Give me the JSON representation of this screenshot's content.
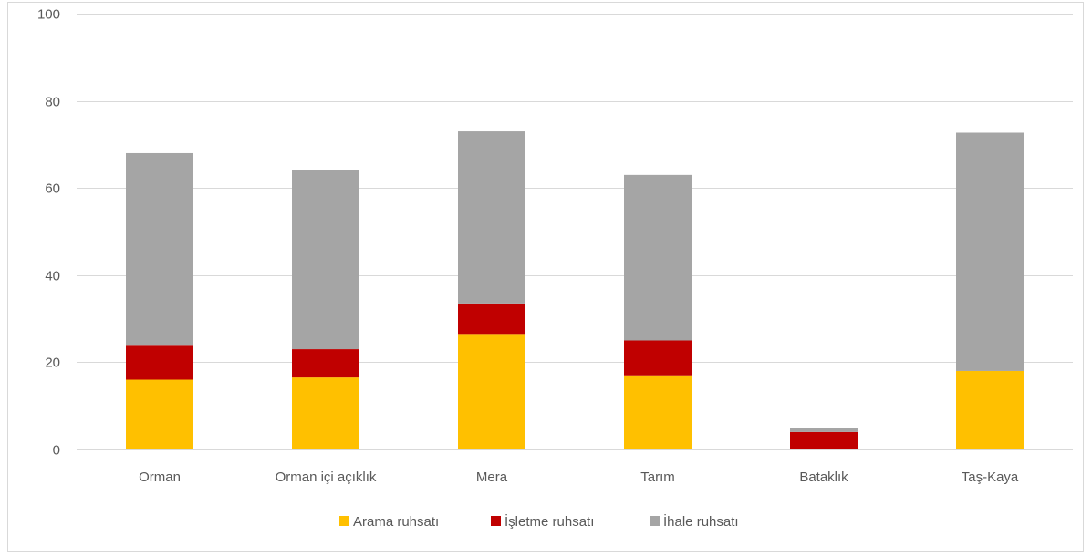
{
  "chart_data": {
    "type": "bar",
    "stacked": true,
    "title": "",
    "xlabel": "",
    "ylabel": "",
    "ylim": [
      0,
      100
    ],
    "yticks": [
      0,
      20,
      40,
      60,
      80,
      100
    ],
    "categories": [
      "Orman",
      "Orman içi açıklık",
      "Mera",
      "Tarım",
      "Bataklık",
      "Taş-Kaya"
    ],
    "series": [
      {
        "name": "Arama ruhsatı",
        "color": "#FFC000",
        "values": [
          16,
          16.5,
          26.5,
          17,
          0,
          18
        ]
      },
      {
        "name": "İşletme ruhsatı",
        "color": "#C00000",
        "values": [
          8,
          6.5,
          7,
          8,
          4,
          0
        ]
      },
      {
        "name": "İhale ruhsatı",
        "color": "#A5A5A5",
        "values": [
          44,
          41.2,
          39.5,
          38,
          1,
          54.7
        ]
      }
    ],
    "grid": true,
    "legend_position": "bottom"
  }
}
